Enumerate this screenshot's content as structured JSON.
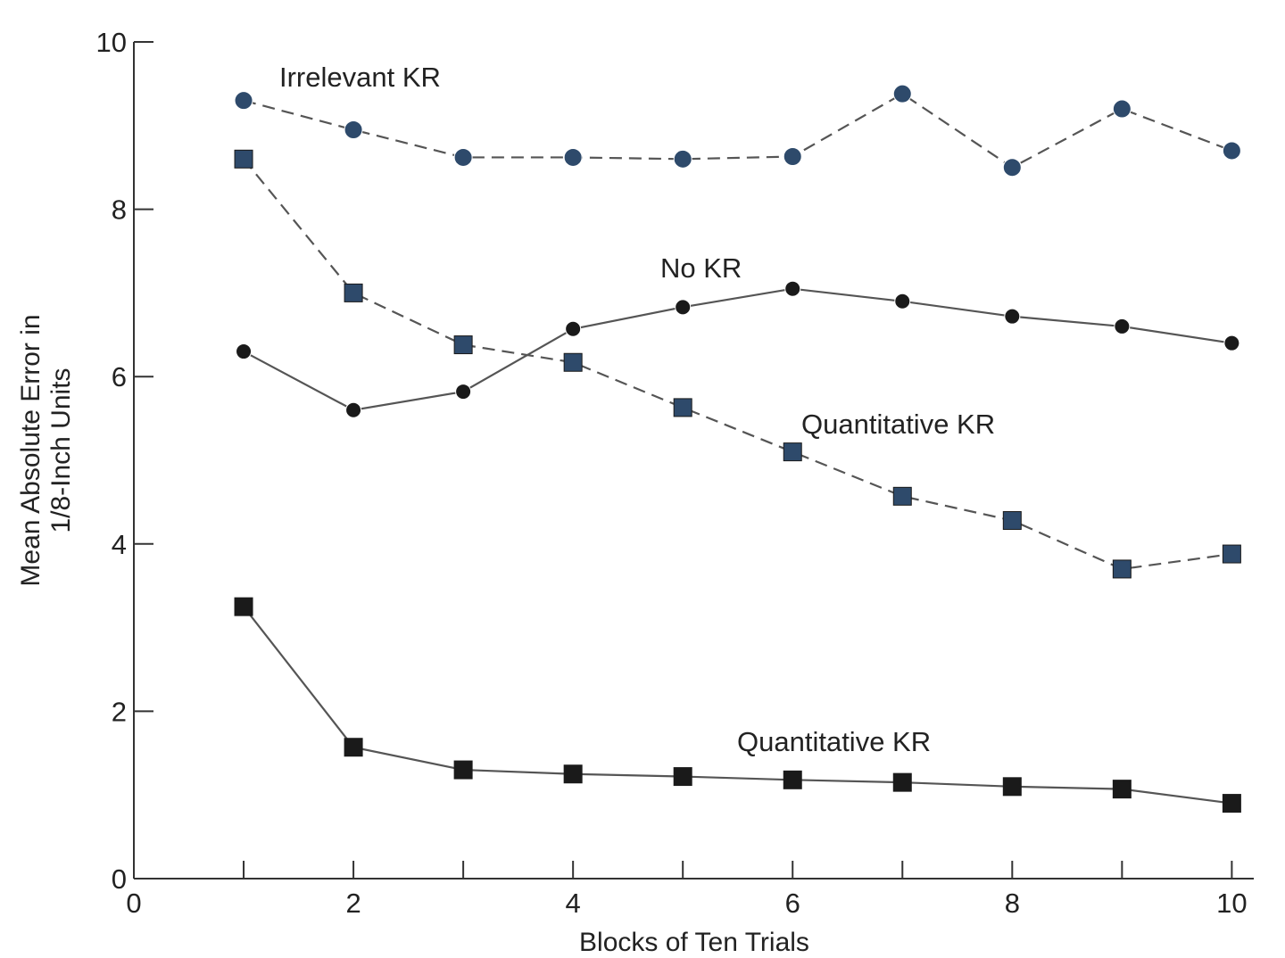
{
  "chart_data": {
    "type": "line",
    "title": "",
    "xlabel": "Blocks of Ten Trials",
    "ylabel": "Mean Absolute Error in 1/8-Inch Units",
    "ylabel_lines": [
      "Mean Absolute Error in",
      "1/8-Inch Units"
    ],
    "xlim": [
      0,
      10.2
    ],
    "ylim": [
      0,
      10
    ],
    "xticks": [
      0,
      2,
      4,
      6,
      8,
      10
    ],
    "x_minor_ticks": [
      1,
      2,
      3,
      4,
      5,
      6,
      7,
      8,
      9,
      10
    ],
    "yticks": [
      0,
      2,
      4,
      6,
      8,
      10
    ],
    "grid": false,
    "legend": "none",
    "x": [
      1,
      2,
      3,
      4,
      5,
      6,
      7,
      8,
      9,
      10
    ],
    "series": [
      {
        "name": "Irrelevant KR",
        "values": [
          9.3,
          8.95,
          8.62,
          8.62,
          8.6,
          8.63,
          9.38,
          8.5,
          9.2,
          8.7
        ],
        "marker": "circle",
        "line_style": "dashed",
        "color": "#2e4a6b"
      },
      {
        "name": "Quantitative KR",
        "values": [
          8.6,
          7.0,
          6.38,
          6.17,
          5.63,
          5.1,
          4.57,
          4.28,
          3.7,
          3.88
        ],
        "marker": "square",
        "line_style": "dashed",
        "color": "#2e4a6b"
      },
      {
        "name": "No KR",
        "values": [
          6.3,
          5.6,
          5.82,
          6.57,
          6.83,
          7.05,
          6.9,
          6.72,
          6.6,
          6.4
        ],
        "marker": "circle",
        "line_style": "solid",
        "color": "#1a1a1a"
      },
      {
        "name": "Quantitative KR",
        "values": [
          3.25,
          1.57,
          1.3,
          1.25,
          1.22,
          1.18,
          1.15,
          1.1,
          1.07,
          0.9
        ],
        "marker": "square",
        "line_style": "solid",
        "color": "#1a1a1a"
      }
    ],
    "annotations": [
      {
        "text": "Irrelevant KR",
        "series": 0
      },
      {
        "text": "No KR",
        "series": 2
      },
      {
        "text": "Quantitative KR",
        "series": 1
      },
      {
        "text": "Quantitative KR",
        "series": 3
      }
    ]
  }
}
